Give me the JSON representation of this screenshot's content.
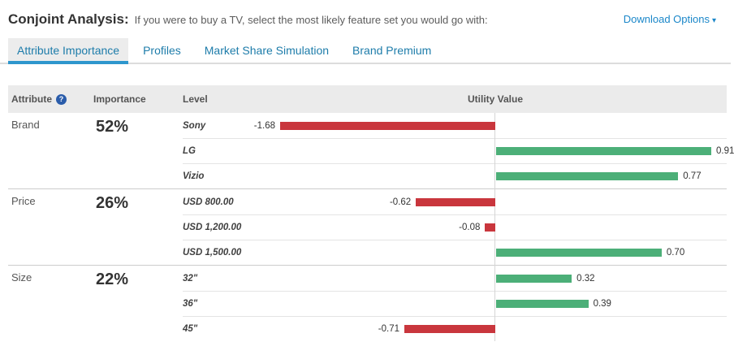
{
  "header": {
    "title": "Conjoint Analysis:",
    "subtitle": "If you were to buy a TV, select the most likely feature set you would go with:",
    "download_label": "Download Options",
    "download_caret": "▾"
  },
  "tabs": [
    {
      "label": "Attribute Importance",
      "active": true
    },
    {
      "label": "Profiles",
      "active": false
    },
    {
      "label": "Market Share Simulation",
      "active": false
    },
    {
      "label": "Brand Premium",
      "active": false
    }
  ],
  "table": {
    "col_attribute": "Attribute",
    "col_importance": "Importance",
    "col_level": "Level",
    "col_utility": "Utility Value",
    "help_icon_glyph": "?"
  },
  "colors": {
    "positive_bar": "#4caf78",
    "negative_bar": "#c9363d",
    "accent_blue": "#1b87c9"
  },
  "chart_data": {
    "type": "bar",
    "orientation": "horizontal",
    "title": "Conjoint Analysis — Attribute Importance",
    "value_axis_label": "Utility Value",
    "groups": [
      {
        "attribute": "Brand",
        "importance": "52%",
        "levels": [
          {
            "label": "Sony",
            "value": -1.68
          },
          {
            "label": "LG",
            "value": 0.91
          },
          {
            "label": "Vizio",
            "value": 0.77
          }
        ]
      },
      {
        "attribute": "Price",
        "importance": "26%",
        "levels": [
          {
            "label": "USD 800.00",
            "value": -0.62
          },
          {
            "label": "USD 1,200.00",
            "value": -0.08
          },
          {
            "label": "USD 1,500.00",
            "value": 0.7
          }
        ]
      },
      {
        "attribute": "Size",
        "importance": "22%",
        "levels": [
          {
            "label": "32\"",
            "value": 0.32
          },
          {
            "label": "36\"",
            "value": 0.39
          },
          {
            "label": "45\"",
            "value": -0.71
          }
        ]
      }
    ]
  }
}
